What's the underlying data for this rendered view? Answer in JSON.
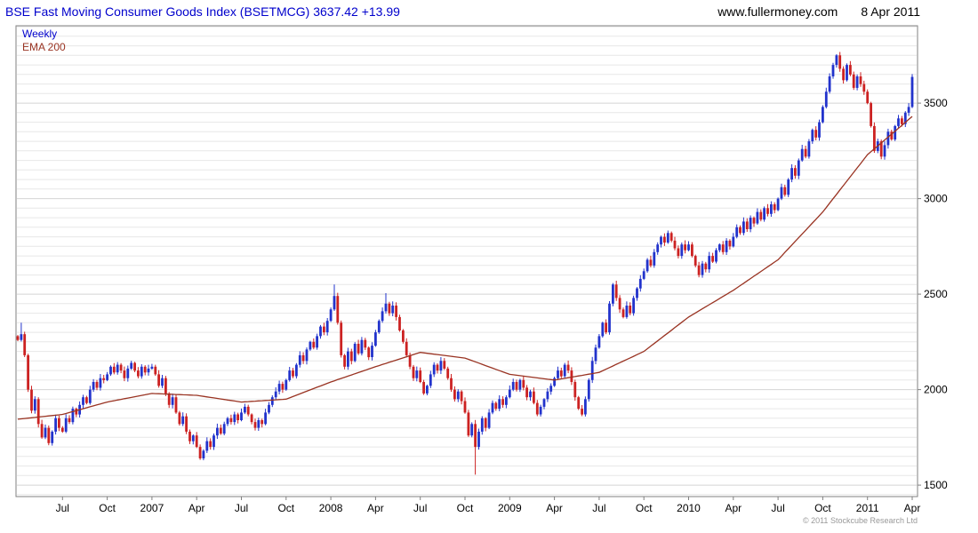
{
  "header": {
    "title": "BSE Fast Moving Consumer Goods Index (BSETMCG) 3637.42 +13.99",
    "website": "www.fullermoney.com",
    "date": "8 Apr 2011"
  },
  "legend": {
    "series1": "Weekly",
    "series2": "EMA 200"
  },
  "footer": {
    "copyright": "© 2011 Stockcube Research Ltd"
  },
  "colors": {
    "title_blue": "#0000cc",
    "up_candle": "#2233cc",
    "down_candle": "#cc2222",
    "ema_line": "#993322",
    "grid_minor": "#e7e7e7",
    "grid_major": "#d4d4d4",
    "frame": "#808080"
  },
  "chart_data": {
    "type": "candlestick",
    "title": "BSE Fast Moving Consumer Goods Index",
    "symbol": "BSETMCG",
    "timeframe": "Weekly",
    "overlay": "EMA 200",
    "last_price": 3637.42,
    "change": "+13.99",
    "ylim": [
      1440,
      3905
    ],
    "y_ticks": [
      1500,
      2000,
      2500,
      3000,
      3500
    ],
    "x_ticks": [
      {
        "label": "Jul",
        "week": 13
      },
      {
        "label": "Oct",
        "week": 26
      },
      {
        "label": "2007",
        "week": 39
      },
      {
        "label": "Apr",
        "week": 52
      },
      {
        "label": "Jul",
        "week": 65
      },
      {
        "label": "Oct",
        "week": 78
      },
      {
        "label": "2008",
        "week": 91
      },
      {
        "label": "Apr",
        "week": 104
      },
      {
        "label": "Jul",
        "week": 117
      },
      {
        "label": "Oct",
        "week": 130
      },
      {
        "label": "2009",
        "week": 143
      },
      {
        "label": "Apr",
        "week": 156
      },
      {
        "label": "Jul",
        "week": 169
      },
      {
        "label": "Oct",
        "week": 182
      },
      {
        "label": "2010",
        "week": 195
      },
      {
        "label": "Apr",
        "week": 208
      },
      {
        "label": "Jul",
        "week": 221
      },
      {
        "label": "Oct",
        "week": 234
      },
      {
        "label": "2011",
        "week": 247
      },
      {
        "label": "Apr",
        "week": 260
      }
    ],
    "weekly_closes": [
      2260,
      2290,
      2180,
      2000,
      1890,
      1950,
      1820,
      1750,
      1800,
      1720,
      1780,
      1850,
      1800,
      1780,
      1850,
      1830,
      1900,
      1870,
      1920,
      1960,
      1930,
      2000,
      2040,
      2010,
      2060,
      2050,
      2080,
      2120,
      2090,
      2130,
      2100,
      2060,
      2110,
      2140,
      2100,
      2070,
      2120,
      2090,
      2110,
      2120,
      2080,
      2020,
      2060,
      1980,
      1920,
      1960,
      1880,
      1820,
      1860,
      1780,
      1730,
      1760,
      1700,
      1640,
      1680,
      1730,
      1700,
      1760,
      1800,
      1770,
      1820,
      1850,
      1830,
      1870,
      1840,
      1880,
      1910,
      1870,
      1830,
      1800,
      1840,
      1820,
      1880,
      1920,
      1960,
      1990,
      2030,
      2000,
      2050,
      2100,
      2070,
      2130,
      2180,
      2150,
      2210,
      2250,
      2220,
      2280,
      2330,
      2300,
      2360,
      2420,
      2490,
      2350,
      2180,
      2120,
      2200,
      2150,
      2240,
      2190,
      2260,
      2220,
      2170,
      2230,
      2300,
      2360,
      2410,
      2450,
      2400,
      2440,
      2380,
      2310,
      2250,
      2180,
      2120,
      2060,
      2100,
      2040,
      1980,
      2020,
      2080,
      2130,
      2100,
      2150,
      2110,
      2060,
      2000,
      1950,
      1990,
      1940,
      1880,
      1760,
      1820,
      1700,
      1780,
      1850,
      1800,
      1880,
      1930,
      1900,
      1950,
      1920,
      1960,
      2000,
      2040,
      2000,
      2050,
      2010,
      1960,
      1990,
      1930,
      1870,
      1910,
      1950,
      1990,
      2020,
      2060,
      2100,
      2070,
      2130,
      2100,
      2040,
      1960,
      1900,
      1870,
      1950,
      2050,
      2150,
      2220,
      2280,
      2350,
      2300,
      2450,
      2550,
      2480,
      2420,
      2380,
      2440,
      2400,
      2480,
      2530,
      2580,
      2620,
      2680,
      2650,
      2720,
      2760,
      2800,
      2770,
      2820,
      2780,
      2740,
      2700,
      2760,
      2730,
      2760,
      2700,
      2650,
      2600,
      2660,
      2630,
      2700,
      2670,
      2730,
      2760,
      2720,
      2780,
      2750,
      2800,
      2850,
      2820,
      2880,
      2840,
      2900,
      2870,
      2930,
      2890,
      2950,
      2920,
      2970,
      2940,
      3000,
      3060,
      3020,
      3100,
      3160,
      3120,
      3200,
      3260,
      3220,
      3300,
      3360,
      3320,
      3400,
      3480,
      3560,
      3640,
      3700,
      3750,
      3680,
      3620,
      3700,
      3650,
      3580,
      3640,
      3600,
      3560,
      3500,
      3380,
      3250,
      3300,
      3220,
      3280,
      3350,
      3310,
      3380,
      3420,
      3390,
      3450,
      3480,
      3637
    ],
    "notable_extremes": {
      "1": {
        "high": 2350
      },
      "92": {
        "high": 2550
      },
      "107": {
        "high": 2505
      },
      "133": {
        "low": 1555
      }
    },
    "ema200_anchors": [
      {
        "week": 0,
        "value": 1845
      },
      {
        "week": 13,
        "value": 1870
      },
      {
        "week": 26,
        "value": 1935
      },
      {
        "week": 39,
        "value": 1980
      },
      {
        "week": 52,
        "value": 1970
      },
      {
        "week": 65,
        "value": 1935
      },
      {
        "week": 78,
        "value": 1950
      },
      {
        "week": 91,
        "value": 2040
      },
      {
        "week": 104,
        "value": 2120
      },
      {
        "week": 117,
        "value": 2195
      },
      {
        "week": 130,
        "value": 2165
      },
      {
        "week": 143,
        "value": 2080
      },
      {
        "week": 156,
        "value": 2050
      },
      {
        "week": 169,
        "value": 2090
      },
      {
        "week": 182,
        "value": 2200
      },
      {
        "week": 195,
        "value": 2380
      },
      {
        "week": 208,
        "value": 2520
      },
      {
        "week": 221,
        "value": 2680
      },
      {
        "week": 234,
        "value": 2930
      },
      {
        "week": 247,
        "value": 3230
      },
      {
        "week": 260,
        "value": 3430
      }
    ]
  }
}
